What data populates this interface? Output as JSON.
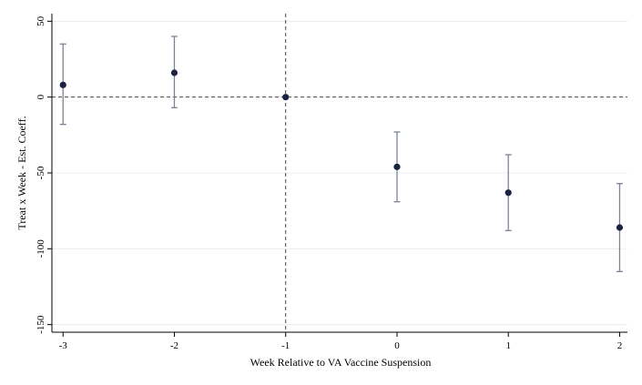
{
  "chart_data": {
    "type": "scatter",
    "xlabel": "Week Relative to VA Vaccine Suspension",
    "ylabel": "Treat x Week - Est. Coeff.",
    "xlim": [
      -3.1,
      2.07
    ],
    "ylim": [
      -155,
      55
    ],
    "x_ticks": [
      -3,
      -2,
      -1,
      0,
      1,
      2
    ],
    "x_tick_labels": [
      "-3",
      "-2",
      "-1",
      "0",
      "1",
      "2"
    ],
    "y_ticks": [
      50,
      0,
      -50,
      -100,
      -150
    ],
    "y_tick_labels": [
      "50",
      "0",
      "-50",
      "-100",
      "-150"
    ],
    "grid": true,
    "reference_lines": {
      "horizontal_y": 0,
      "vertical_x": -1
    },
    "points": [
      {
        "x": -3,
        "y": 8,
        "ci_low": -18,
        "ci_high": 35
      },
      {
        "x": -2,
        "y": 16,
        "ci_low": -7,
        "ci_high": 40
      },
      {
        "x": -1,
        "y": 0,
        "ci_low": null,
        "ci_high": null
      },
      {
        "x": 0,
        "y": -46,
        "ci_low": -69,
        "ci_high": -23
      },
      {
        "x": 1,
        "y": -63,
        "ci_low": -88,
        "ci_high": -38
      },
      {
        "x": 2,
        "y": -86,
        "ci_low": -115,
        "ci_high": -57
      }
    ],
    "colors": {
      "marker": "#1a2440",
      "error_bar": "#7b8495",
      "grid": "#ececec",
      "axis": "#000000"
    }
  }
}
